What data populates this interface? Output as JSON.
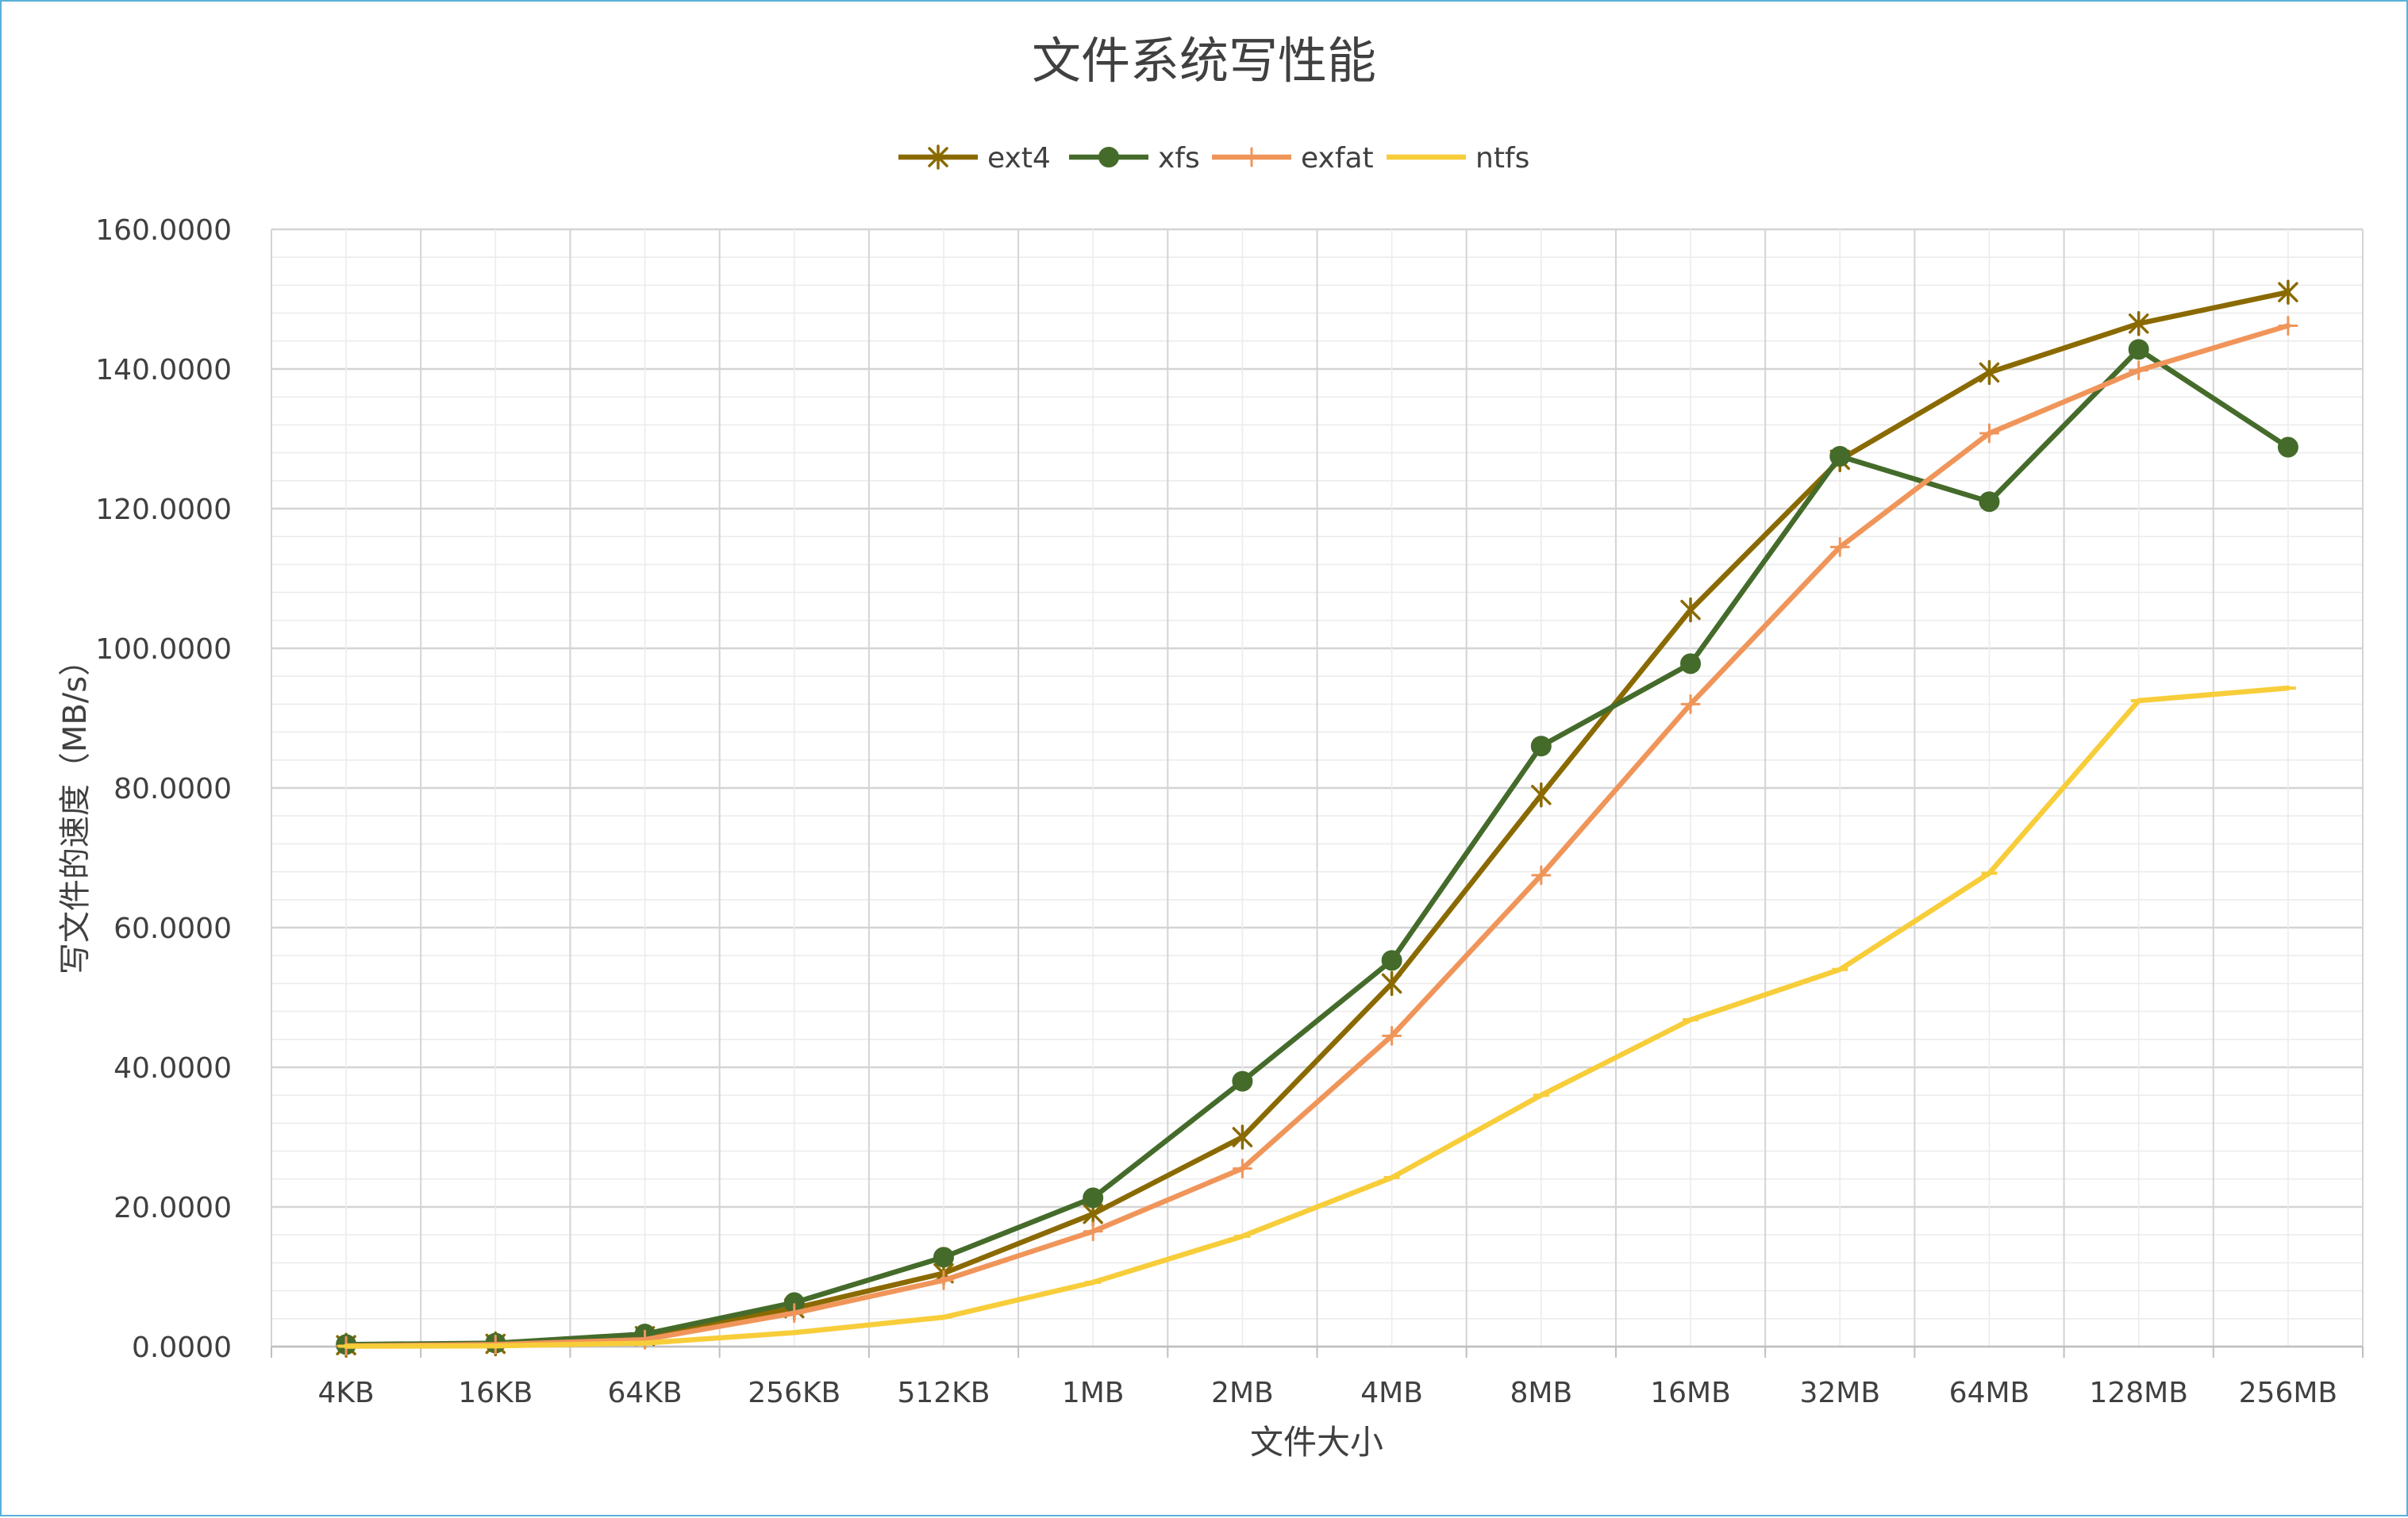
{
  "chart_data": {
    "type": "line",
    "title": "文件系统写性能",
    "xlabel": "文件大小",
    "ylabel": "写文件的速度（MB/s）",
    "categories": [
      "4KB",
      "16KB",
      "64KB",
      "256KB",
      "512KB",
      "1MB",
      "2MB",
      "4MB",
      "8MB",
      "16MB",
      "32MB",
      "64MB",
      "128MB",
      "256MB"
    ],
    "ylim": [
      0,
      160
    ],
    "yticks": [
      "0.0000",
      "20.0000",
      "40.0000",
      "60.0000",
      "80.0000",
      "100.0000",
      "120.0000",
      "140.0000",
      "160.0000"
    ],
    "grid": true,
    "legend": "top",
    "series": [
      {
        "name": "ext4",
        "color": "#8a6a00",
        "marker": "star",
        "values": [
          0.2,
          0.4,
          1.5,
          5.5,
          10.5,
          19.0,
          30.0,
          52.0,
          79.0,
          105.5,
          127.0,
          139.5,
          146.5,
          151.0
        ]
      },
      {
        "name": "xfs",
        "color": "#456b2b",
        "marker": "circle",
        "values": [
          0.3,
          0.5,
          1.8,
          6.3,
          12.8,
          21.3,
          38.0,
          55.3,
          86.0,
          97.8,
          127.5,
          121.0,
          142.8,
          128.8
        ]
      },
      {
        "name": "exfat",
        "color": "#f0955a",
        "marker": "plus",
        "values": [
          0.1,
          0.3,
          1.0,
          4.8,
          9.5,
          16.5,
          25.5,
          44.5,
          67.5,
          92.0,
          114.5,
          130.8,
          139.8,
          146.2
        ]
      },
      {
        "name": "ntfs",
        "color": "#f7cd3a",
        "marker": "dash",
        "values": [
          0.05,
          0.1,
          0.5,
          2.0,
          4.2,
          9.2,
          15.8,
          24.2,
          36.0,
          46.8,
          54.0,
          67.8,
          92.5,
          94.3
        ]
      }
    ]
  }
}
